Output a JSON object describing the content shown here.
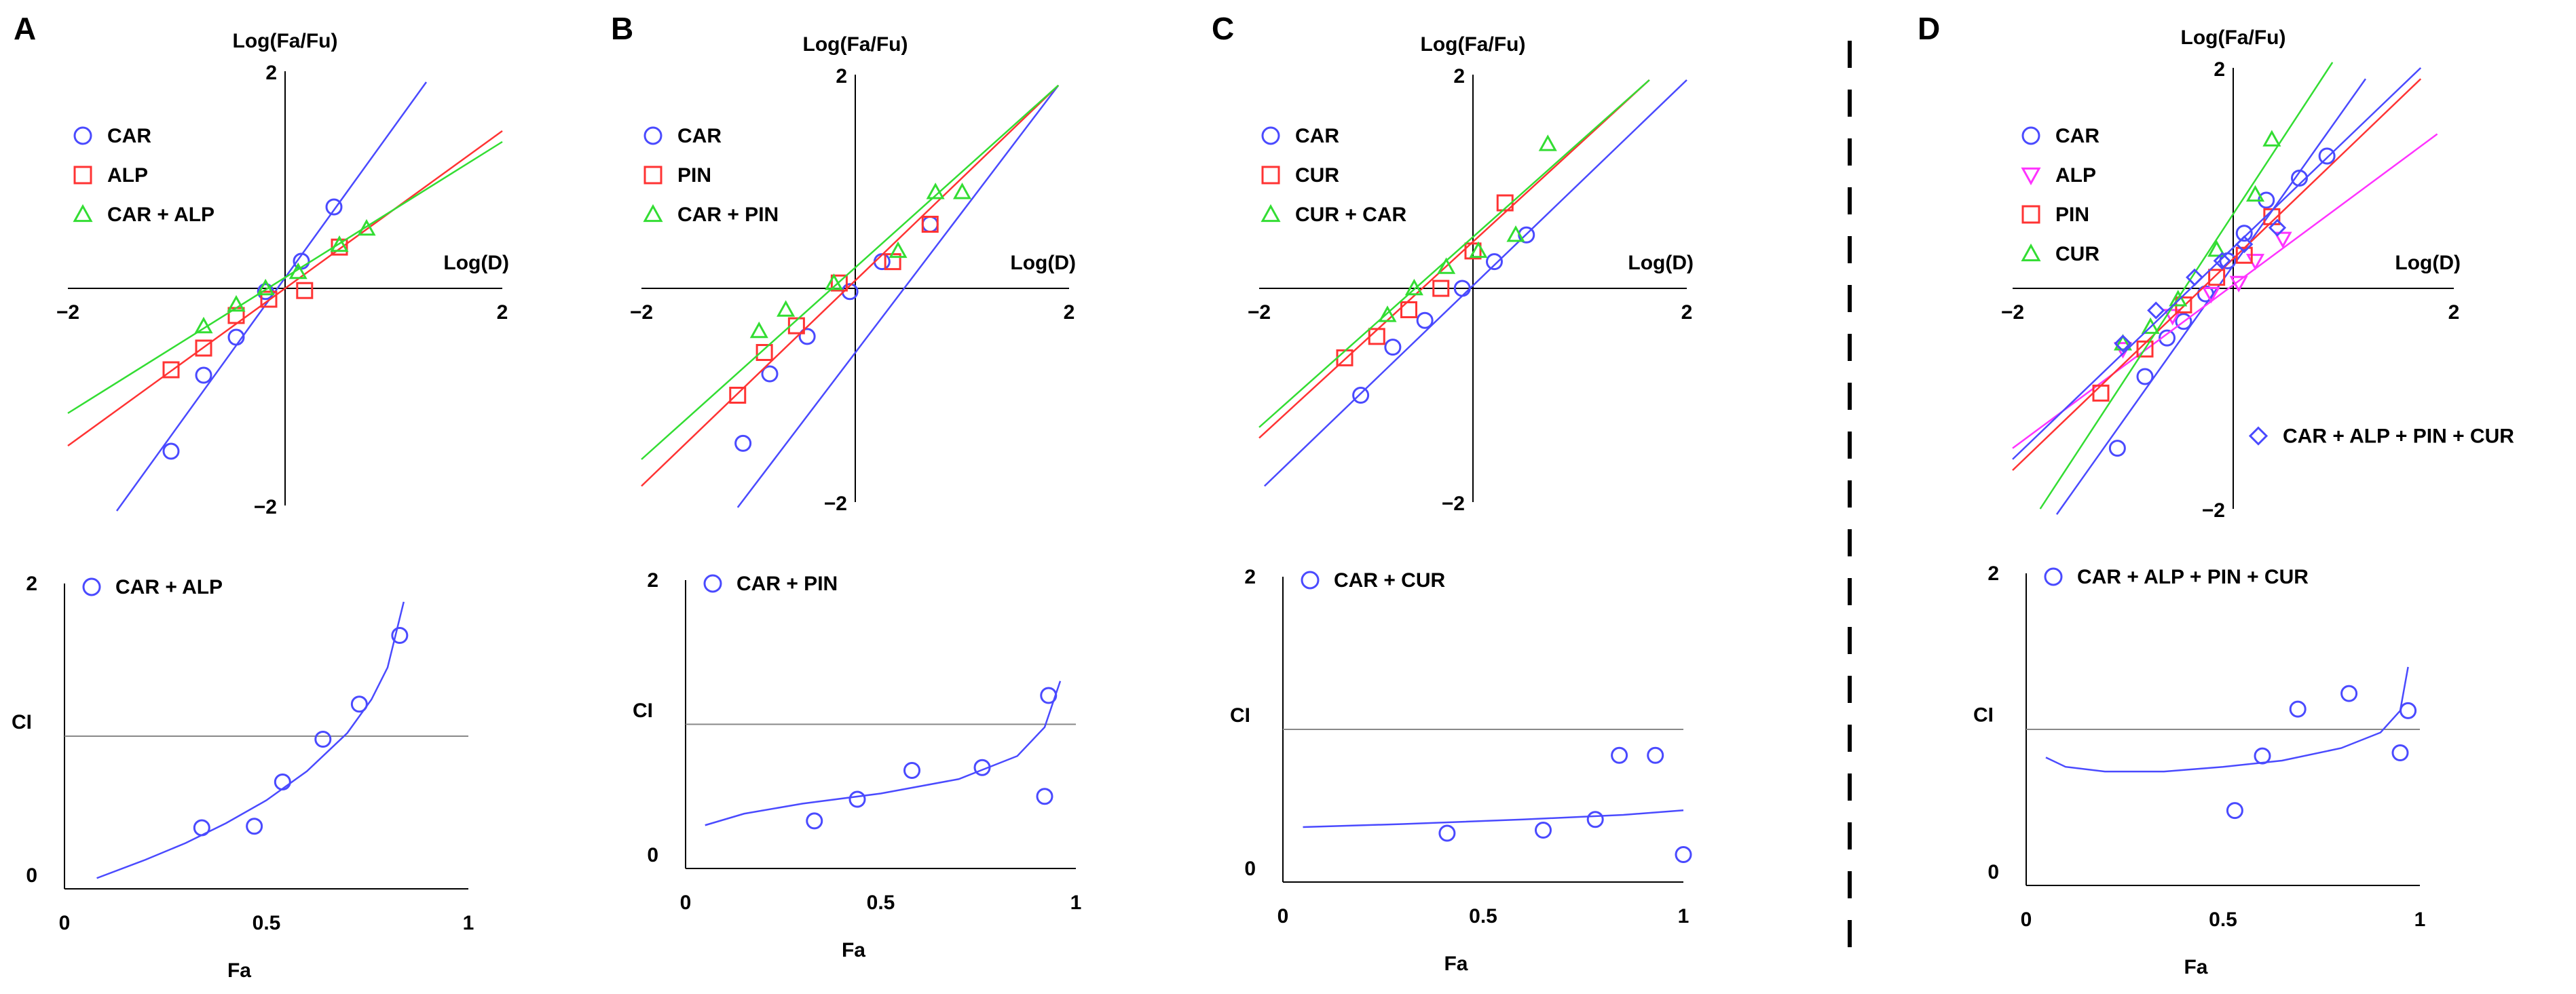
{
  "figure": {
    "separator_color": "#000000"
  },
  "colors": {
    "blue": "#4a4aff",
    "red": "#ff3333",
    "green": "#33dd33",
    "magenta": "#ff33ff",
    "ref_line": "#888888"
  },
  "chart_data": [
    {
      "panel": "A",
      "type": "scatter",
      "xlabel": "Log(D)",
      "ylabel": "Log(Fa/Fu)",
      "xticks": [
        "−2",
        "2"
      ],
      "yticks": [
        "2",
        "−2"
      ],
      "xlim": [
        -2,
        2
      ],
      "ylim": [
        -2,
        2
      ],
      "legend_position": "top-left",
      "series": [
        {
          "name": "CAR",
          "marker": "circle",
          "color": "blue",
          "points": [
            [
              -1.05,
              -1.5
            ],
            [
              -0.75,
              -0.8
            ],
            [
              -0.45,
              -0.45
            ],
            [
              -0.18,
              -0.03
            ],
            [
              0.15,
              0.25
            ],
            [
              0.45,
              0.75
            ]
          ],
          "fit": [
            [
              -1.55,
              -2.05
            ],
            [
              1.3,
              1.9
            ]
          ]
        },
        {
          "name": "ALP",
          "marker": "square",
          "color": "red",
          "points": [
            [
              -1.05,
              -0.75
            ],
            [
              -0.75,
              -0.55
            ],
            [
              -0.45,
              -0.25
            ],
            [
              -0.15,
              -0.1
            ],
            [
              0.18,
              -0.02
            ],
            [
              0.5,
              0.38
            ]
          ],
          "fit": [
            [
              -2.0,
              -1.45
            ],
            [
              2.0,
              1.45
            ]
          ]
        },
        {
          "name": "CAR + ALP",
          "marker": "triangle",
          "color": "green",
          "points": [
            [
              -0.75,
              -0.35
            ],
            [
              -0.45,
              -0.15
            ],
            [
              -0.18,
              0.0
            ],
            [
              0.12,
              0.15
            ],
            [
              0.5,
              0.4
            ],
            [
              0.75,
              0.55
            ]
          ],
          "fit": [
            [
              -2.0,
              -1.15
            ],
            [
              2.0,
              1.35
            ]
          ]
        }
      ]
    },
    {
      "panel": "B",
      "type": "scatter",
      "xlabel": "Log(D)",
      "ylabel": "Log(Fa/Fu)",
      "xticks": [
        "−2",
        "2"
      ],
      "yticks": [
        "2",
        "−2"
      ],
      "xlim": [
        -2,
        2
      ],
      "ylim": [
        -2,
        2
      ],
      "legend_position": "top-left",
      "series": [
        {
          "name": "CAR",
          "marker": "circle",
          "color": "blue",
          "points": [
            [
              -1.05,
              -1.45
            ],
            [
              -0.8,
              -0.8
            ],
            [
              -0.45,
              -0.45
            ],
            [
              -0.05,
              -0.03
            ],
            [
              0.25,
              0.25
            ],
            [
              0.7,
              0.6
            ]
          ],
          "fit": [
            [
              -1.1,
              -2.05
            ],
            [
              1.9,
              1.9
            ]
          ]
        },
        {
          "name": "PIN",
          "marker": "square",
          "color": "red",
          "points": [
            [
              -1.1,
              -1.0
            ],
            [
              -0.85,
              -0.6
            ],
            [
              -0.55,
              -0.35
            ],
            [
              -0.15,
              0.05
            ],
            [
              0.35,
              0.25
            ],
            [
              0.7,
              0.6
            ]
          ],
          "fit": [
            [
              -2.0,
              -1.85
            ],
            [
              1.9,
              1.9
            ]
          ]
        },
        {
          "name": "CAR + PIN",
          "marker": "triangle",
          "color": "green",
          "points": [
            [
              -0.9,
              -0.4
            ],
            [
              -0.65,
              -0.2
            ],
            [
              -0.2,
              0.05
            ],
            [
              0.4,
              0.35
            ],
            [
              0.75,
              0.9
            ],
            [
              1.0,
              0.9
            ]
          ],
          "fit": [
            [
              -2.0,
              -1.6
            ],
            [
              1.9,
              1.9
            ]
          ]
        }
      ]
    },
    {
      "panel": "C",
      "type": "scatter",
      "xlabel": "Log(D)",
      "ylabel": "Log(Fa/Fu)",
      "xticks": [
        "−2",
        "2"
      ],
      "yticks": [
        "2",
        "−2"
      ],
      "xlim": [
        -2,
        2
      ],
      "ylim": [
        -2,
        2
      ],
      "legend_position": "top-left",
      "series": [
        {
          "name": "CAR",
          "marker": "circle",
          "color": "blue",
          "points": [
            [
              -1.05,
              -1.0
            ],
            [
              -0.75,
              -0.55
            ],
            [
              -0.45,
              -0.3
            ],
            [
              -0.1,
              0.0
            ],
            [
              0.2,
              0.25
            ],
            [
              0.5,
              0.5
            ]
          ],
          "fit": [
            [
              -1.95,
              -1.85
            ],
            [
              2.0,
              1.95
            ]
          ]
        },
        {
          "name": "CUR",
          "marker": "square",
          "color": "red",
          "points": [
            [
              -1.2,
              -0.65
            ],
            [
              -0.9,
              -0.45
            ],
            [
              -0.6,
              -0.2
            ],
            [
              -0.3,
              0.0
            ],
            [
              0.0,
              0.35
            ],
            [
              0.3,
              0.8
            ]
          ],
          "fit": [
            [
              -2.0,
              -1.4
            ],
            [
              1.65,
              1.95
            ]
          ]
        },
        {
          "name": "CUR + CAR",
          "marker": "triangle",
          "color": "green",
          "points": [
            [
              -0.8,
              -0.25
            ],
            [
              -0.55,
              0.0
            ],
            [
              -0.25,
              0.2
            ],
            [
              0.05,
              0.35
            ],
            [
              0.4,
              0.5
            ],
            [
              0.7,
              1.35
            ]
          ],
          "fit": [
            [
              -2.0,
              -1.3
            ],
            [
              1.65,
              1.95
            ]
          ]
        }
      ]
    },
    {
      "panel": "D",
      "type": "scatter",
      "xlabel": "Log(D)",
      "ylabel": "Log(Fa/Fu)",
      "xticks": [
        "−2",
        "2"
      ],
      "yticks": [
        "2",
        "−2"
      ],
      "xlim": [
        -2,
        2
      ],
      "ylim": [
        -2,
        2
      ],
      "legend_position": "top-left",
      "extra_legend": "CAR + ALP + PIN + CUR",
      "series": [
        {
          "name": "CAR",
          "marker": "circle",
          "color": "blue",
          "points": [
            [
              -1.05,
              -1.45
            ],
            [
              -0.8,
              -0.8
            ],
            [
              -0.6,
              -0.45
            ],
            [
              -0.45,
              -0.3
            ],
            [
              -0.25,
              -0.05
            ],
            [
              -0.05,
              0.25
            ],
            [
              0.1,
              0.5
            ],
            [
              0.3,
              0.8
            ],
            [
              0.6,
              1.0
            ],
            [
              0.85,
              1.2
            ]
          ],
          "fit": [
            [
              -1.6,
              -2.05
            ],
            [
              1.2,
              1.9
            ]
          ]
        },
        {
          "name": "ALP",
          "marker": "triangle-down",
          "color": "magenta",
          "points": [
            [
              -1.0,
              -0.55
            ],
            [
              -0.55,
              -0.25
            ],
            [
              -0.2,
              -0.05
            ],
            [
              0.05,
              0.05
            ],
            [
              0.2,
              0.25
            ],
            [
              0.45,
              0.45
            ]
          ],
          "fit": [
            [
              -2.0,
              -1.45
            ],
            [
              1.85,
              1.4
            ]
          ]
        },
        {
          "name": "PIN",
          "marker": "square",
          "color": "red",
          "points": [
            [
              -1.2,
              -0.95
            ],
            [
              -0.8,
              -0.55
            ],
            [
              -0.45,
              -0.15
            ],
            [
              -0.15,
              0.1
            ],
            [
              0.1,
              0.3
            ],
            [
              0.35,
              0.65
            ]
          ],
          "fit": [
            [
              -2.0,
              -1.65
            ],
            [
              1.7,
              1.9
            ]
          ]
        },
        {
          "name": "CUR",
          "marker": "triangle",
          "color": "green",
          "points": [
            [
              -1.0,
              -0.5
            ],
            [
              -0.75,
              -0.35
            ],
            [
              -0.5,
              -0.1
            ],
            [
              -0.15,
              0.35
            ],
            [
              0.2,
              0.85
            ],
            [
              0.35,
              1.35
            ]
          ],
          "fit": [
            [
              -1.75,
              -2.0
            ],
            [
              0.9,
              2.05
            ]
          ]
        },
        {
          "name": "CAR + ALP + PIN + CUR",
          "marker": "diamond",
          "color": "blue",
          "points": [
            [
              -1.0,
              -0.5
            ],
            [
              -0.7,
              -0.2
            ],
            [
              -0.35,
              0.1
            ],
            [
              -0.1,
              0.25
            ],
            [
              0.1,
              0.4
            ],
            [
              0.4,
              0.55
            ]
          ],
          "fit": [
            [
              -2.0,
              -1.55
            ],
            [
              1.7,
              2.0
            ]
          ]
        }
      ]
    },
    {
      "panel": "A",
      "type": "scatter",
      "xlabel": "Fa",
      "ylabel": "CI",
      "xticks": [
        "0",
        "0.5",
        "1"
      ],
      "yticks": [
        "2",
        "0"
      ],
      "xlim": [
        0,
        1
      ],
      "ylim": [
        0,
        2
      ],
      "ref_line_y": 1,
      "legend_position": "top-left",
      "series": [
        {
          "name": "CAR + ALP",
          "marker": "circle",
          "color": "blue",
          "points": [
            [
              0.34,
              0.4
            ],
            [
              0.47,
              0.41
            ],
            [
              0.54,
              0.7
            ],
            [
              0.64,
              0.98
            ],
            [
              0.73,
              1.21
            ],
            [
              0.83,
              1.66
            ]
          ],
          "curve": [
            [
              0.08,
              0.07
            ],
            [
              0.2,
              0.19
            ],
            [
              0.3,
              0.3
            ],
            [
              0.4,
              0.43
            ],
            [
              0.5,
              0.58
            ],
            [
              0.6,
              0.77
            ],
            [
              0.7,
              1.02
            ],
            [
              0.76,
              1.24
            ],
            [
              0.8,
              1.45
            ],
            [
              0.84,
              1.88
            ]
          ]
        }
      ]
    },
    {
      "panel": "B",
      "type": "scatter",
      "xlabel": "Fa",
      "ylabel": "CI",
      "xticks": [
        "0",
        "0.5",
        "1"
      ],
      "yticks": [
        "2",
        "0"
      ],
      "xlim": [
        0,
        1
      ],
      "ylim": [
        0,
        2
      ],
      "ref_line_y": 1,
      "legend_position": "top-left",
      "series": [
        {
          "name": "CAR + PIN",
          "marker": "circle",
          "color": "blue",
          "points": [
            [
              0.33,
              0.33
            ],
            [
              0.44,
              0.48
            ],
            [
              0.58,
              0.68
            ],
            [
              0.76,
              0.7
            ],
            [
              0.92,
              0.5
            ],
            [
              0.93,
              1.2
            ]
          ],
          "curve": [
            [
              0.05,
              0.3
            ],
            [
              0.15,
              0.38
            ],
            [
              0.3,
              0.45
            ],
            [
              0.5,
              0.52
            ],
            [
              0.7,
              0.62
            ],
            [
              0.85,
              0.78
            ],
            [
              0.92,
              0.98
            ],
            [
              0.96,
              1.3
            ]
          ]
        }
      ]
    },
    {
      "panel": "C",
      "type": "scatter",
      "xlabel": "Fa",
      "ylabel": "CI",
      "xticks": [
        "0",
        "0.5",
        "1"
      ],
      "yticks": [
        "2",
        "0"
      ],
      "xlim": [
        0,
        1
      ],
      "ylim": [
        0,
        2
      ],
      "ref_line_y": 1,
      "legend_position": "top-left",
      "series": [
        {
          "name": "CAR + CUR",
          "marker": "circle",
          "color": "blue",
          "points": [
            [
              0.41,
              0.32
            ],
            [
              0.65,
              0.34
            ],
            [
              0.78,
              0.41
            ],
            [
              0.84,
              0.83
            ],
            [
              0.93,
              0.83
            ],
            [
              1.0,
              0.18
            ]
          ],
          "curve": [
            [
              0.05,
              0.36
            ],
            [
              0.3,
              0.38
            ],
            [
              0.6,
              0.41
            ],
            [
              0.85,
              0.44
            ],
            [
              1.0,
              0.47
            ]
          ]
        }
      ]
    },
    {
      "panel": "D",
      "type": "scatter",
      "xlabel": "Fa",
      "ylabel": "CI",
      "xticks": [
        "0",
        "0.5",
        "1"
      ],
      "yticks": [
        "2",
        "0"
      ],
      "xlim": [
        0,
        1
      ],
      "ylim": [
        0,
        2
      ],
      "ref_line_y": 1,
      "legend_position": "top-left",
      "series": [
        {
          "name": "CAR + ALP + PIN + CUR",
          "marker": "circle",
          "color": "blue",
          "points": [
            [
              0.53,
              0.48
            ],
            [
              0.6,
              0.83
            ],
            [
              0.69,
              1.13
            ],
            [
              0.82,
              1.23
            ],
            [
              0.95,
              0.85
            ],
            [
              0.97,
              1.12
            ]
          ],
          "curve": [
            [
              0.05,
              0.82
            ],
            [
              0.1,
              0.76
            ],
            [
              0.2,
              0.73
            ],
            [
              0.35,
              0.73
            ],
            [
              0.5,
              0.76
            ],
            [
              0.65,
              0.8
            ],
            [
              0.8,
              0.88
            ],
            [
              0.9,
              0.98
            ],
            [
              0.95,
              1.12
            ],
            [
              0.97,
              1.4
            ]
          ]
        }
      ]
    }
  ]
}
